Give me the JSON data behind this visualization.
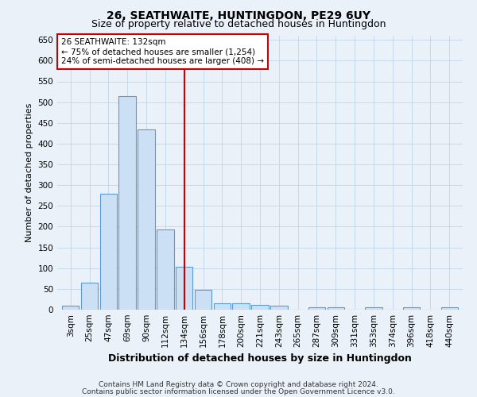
{
  "title": "26, SEATHWAITE, HUNTINGDON, PE29 6UY",
  "subtitle": "Size of property relative to detached houses in Huntingdon",
  "xlabel": "Distribution of detached houses by size in Huntingdon",
  "ylabel": "Number of detached properties",
  "categories": [
    "3sqm",
    "25sqm",
    "47sqm",
    "69sqm",
    "90sqm",
    "112sqm",
    "134sqm",
    "156sqm",
    "178sqm",
    "200sqm",
    "221sqm",
    "243sqm",
    "265sqm",
    "287sqm",
    "309sqm",
    "331sqm",
    "353sqm",
    "374sqm",
    "396sqm",
    "418sqm",
    "440sqm"
  ],
  "values": [
    10,
    65,
    280,
    515,
    435,
    193,
    103,
    47,
    15,
    15,
    11,
    10,
    0,
    5,
    5,
    0,
    5,
    0,
    5,
    0,
    5
  ],
  "bar_color": "#cce0f5",
  "bar_edge_color": "#5b9bd5",
  "vline_x_index": 6,
  "vline_color": "#cc0000",
  "annotation_line1": "26 SEATHWAITE: 132sqm",
  "annotation_line2": "← 75% of detached houses are smaller (1,254)",
  "annotation_line3": "24% of semi-detached houses are larger (408) →",
  "annotation_box_color": "#ffffff",
  "annotation_box_edge_color": "#cc0000",
  "ylim": [
    0,
    660
  ],
  "yticks": [
    0,
    50,
    100,
    150,
    200,
    250,
    300,
    350,
    400,
    450,
    500,
    550,
    600,
    650
  ],
  "footnote1": "Contains HM Land Registry data © Crown copyright and database right 2024.",
  "footnote2": "Contains public sector information licensed under the Open Government Licence v3.0.",
  "bg_color": "#eaf1f9",
  "plot_bg_color": "#eaf1f9",
  "title_fontsize": 10,
  "subtitle_fontsize": 9,
  "xlabel_fontsize": 9,
  "ylabel_fontsize": 8,
  "tick_fontsize": 7.5,
  "annotation_fontsize": 7.5,
  "footnote_fontsize": 6.5
}
